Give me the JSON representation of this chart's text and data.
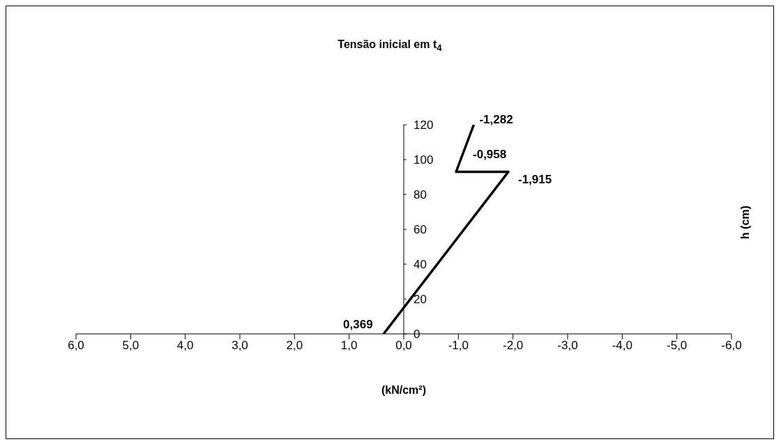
{
  "chart_data": {
    "type": "line",
    "title": "Tensão inicial em t$_{4}$",
    "xlabel": "(kN/cm²)",
    "ylabel": "h (cm)",
    "x": [
      0.369,
      -1.915,
      -0.958,
      -1.282
    ],
    "series": [
      {
        "color": "#000000",
        "values": [
          0,
          93,
          93,
          120
        ]
      }
    ],
    "annotations": [
      {
        "text": "0,369",
        "x": 0.369,
        "y": 0
      },
      {
        "text": "-1,915",
        "x": -1.915,
        "y": 93
      },
      {
        "text": "-0,958",
        "x": -0.958,
        "y": 93
      },
      {
        "text": "-1,282",
        "x": -1.282,
        "y": 120
      }
    ],
    "xlim": [
      6,
      -6
    ],
    "xticks": [
      {
        "value": 6,
        "label": "6,0"
      },
      {
        "value": 5,
        "label": "5,0"
      },
      {
        "value": 4,
        "label": "4,0"
      },
      {
        "value": 3,
        "label": "3,0"
      },
      {
        "value": 2,
        "label": "2,0"
      },
      {
        "value": 1,
        "label": "1,0"
      },
      {
        "value": 0,
        "label": "0,0"
      },
      {
        "value": -1,
        "label": "-1,0"
      },
      {
        "value": -2,
        "label": "-2,0"
      },
      {
        "value": -3,
        "label": "-3,0"
      },
      {
        "value": -4,
        "label": "-4,0"
      },
      {
        "value": -5,
        "label": "-5,0"
      },
      {
        "value": -6,
        "label": "-6,0"
      }
    ],
    "ylim": [
      0,
      120
    ],
    "yticks": [
      0,
      20,
      40,
      60,
      80,
      100,
      120
    ],
    "grid": false,
    "marker": "none",
    "line_style": "solid"
  }
}
